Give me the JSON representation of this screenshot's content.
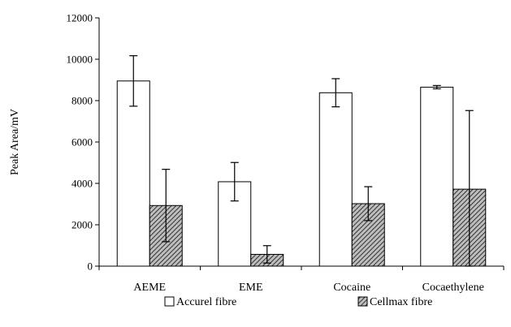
{
  "chart_data": {
    "type": "bar",
    "categories": [
      "AEME",
      "EME",
      "Cocaine",
      "Cocaethylene"
    ],
    "ylabel": "Peak Area/mV",
    "ylim": [
      0,
      12000
    ],
    "yticks": [
      0,
      2000,
      4000,
      6000,
      8000,
      10000,
      12000
    ],
    "grid": false,
    "legend_position": "bottom",
    "series": [
      {
        "name": "Accurel fibre",
        "values": [
          8950,
          4080,
          8380,
          8650
        ],
        "errors": [
          1220,
          930,
          680,
          80
        ],
        "fill": "#ffffff",
        "pattern": "none"
      },
      {
        "name": "Cellmax fibre",
        "values": [
          2930,
          570,
          3020,
          3720
        ],
        "errors": [
          1750,
          420,
          820,
          3800
        ],
        "fill": "#777777",
        "pattern": "diagonal-hatch"
      }
    ],
    "colors": {
      "stroke": "#000000",
      "hatch_bg": "#bdbdbd",
      "hatch_line": "#333333"
    }
  }
}
